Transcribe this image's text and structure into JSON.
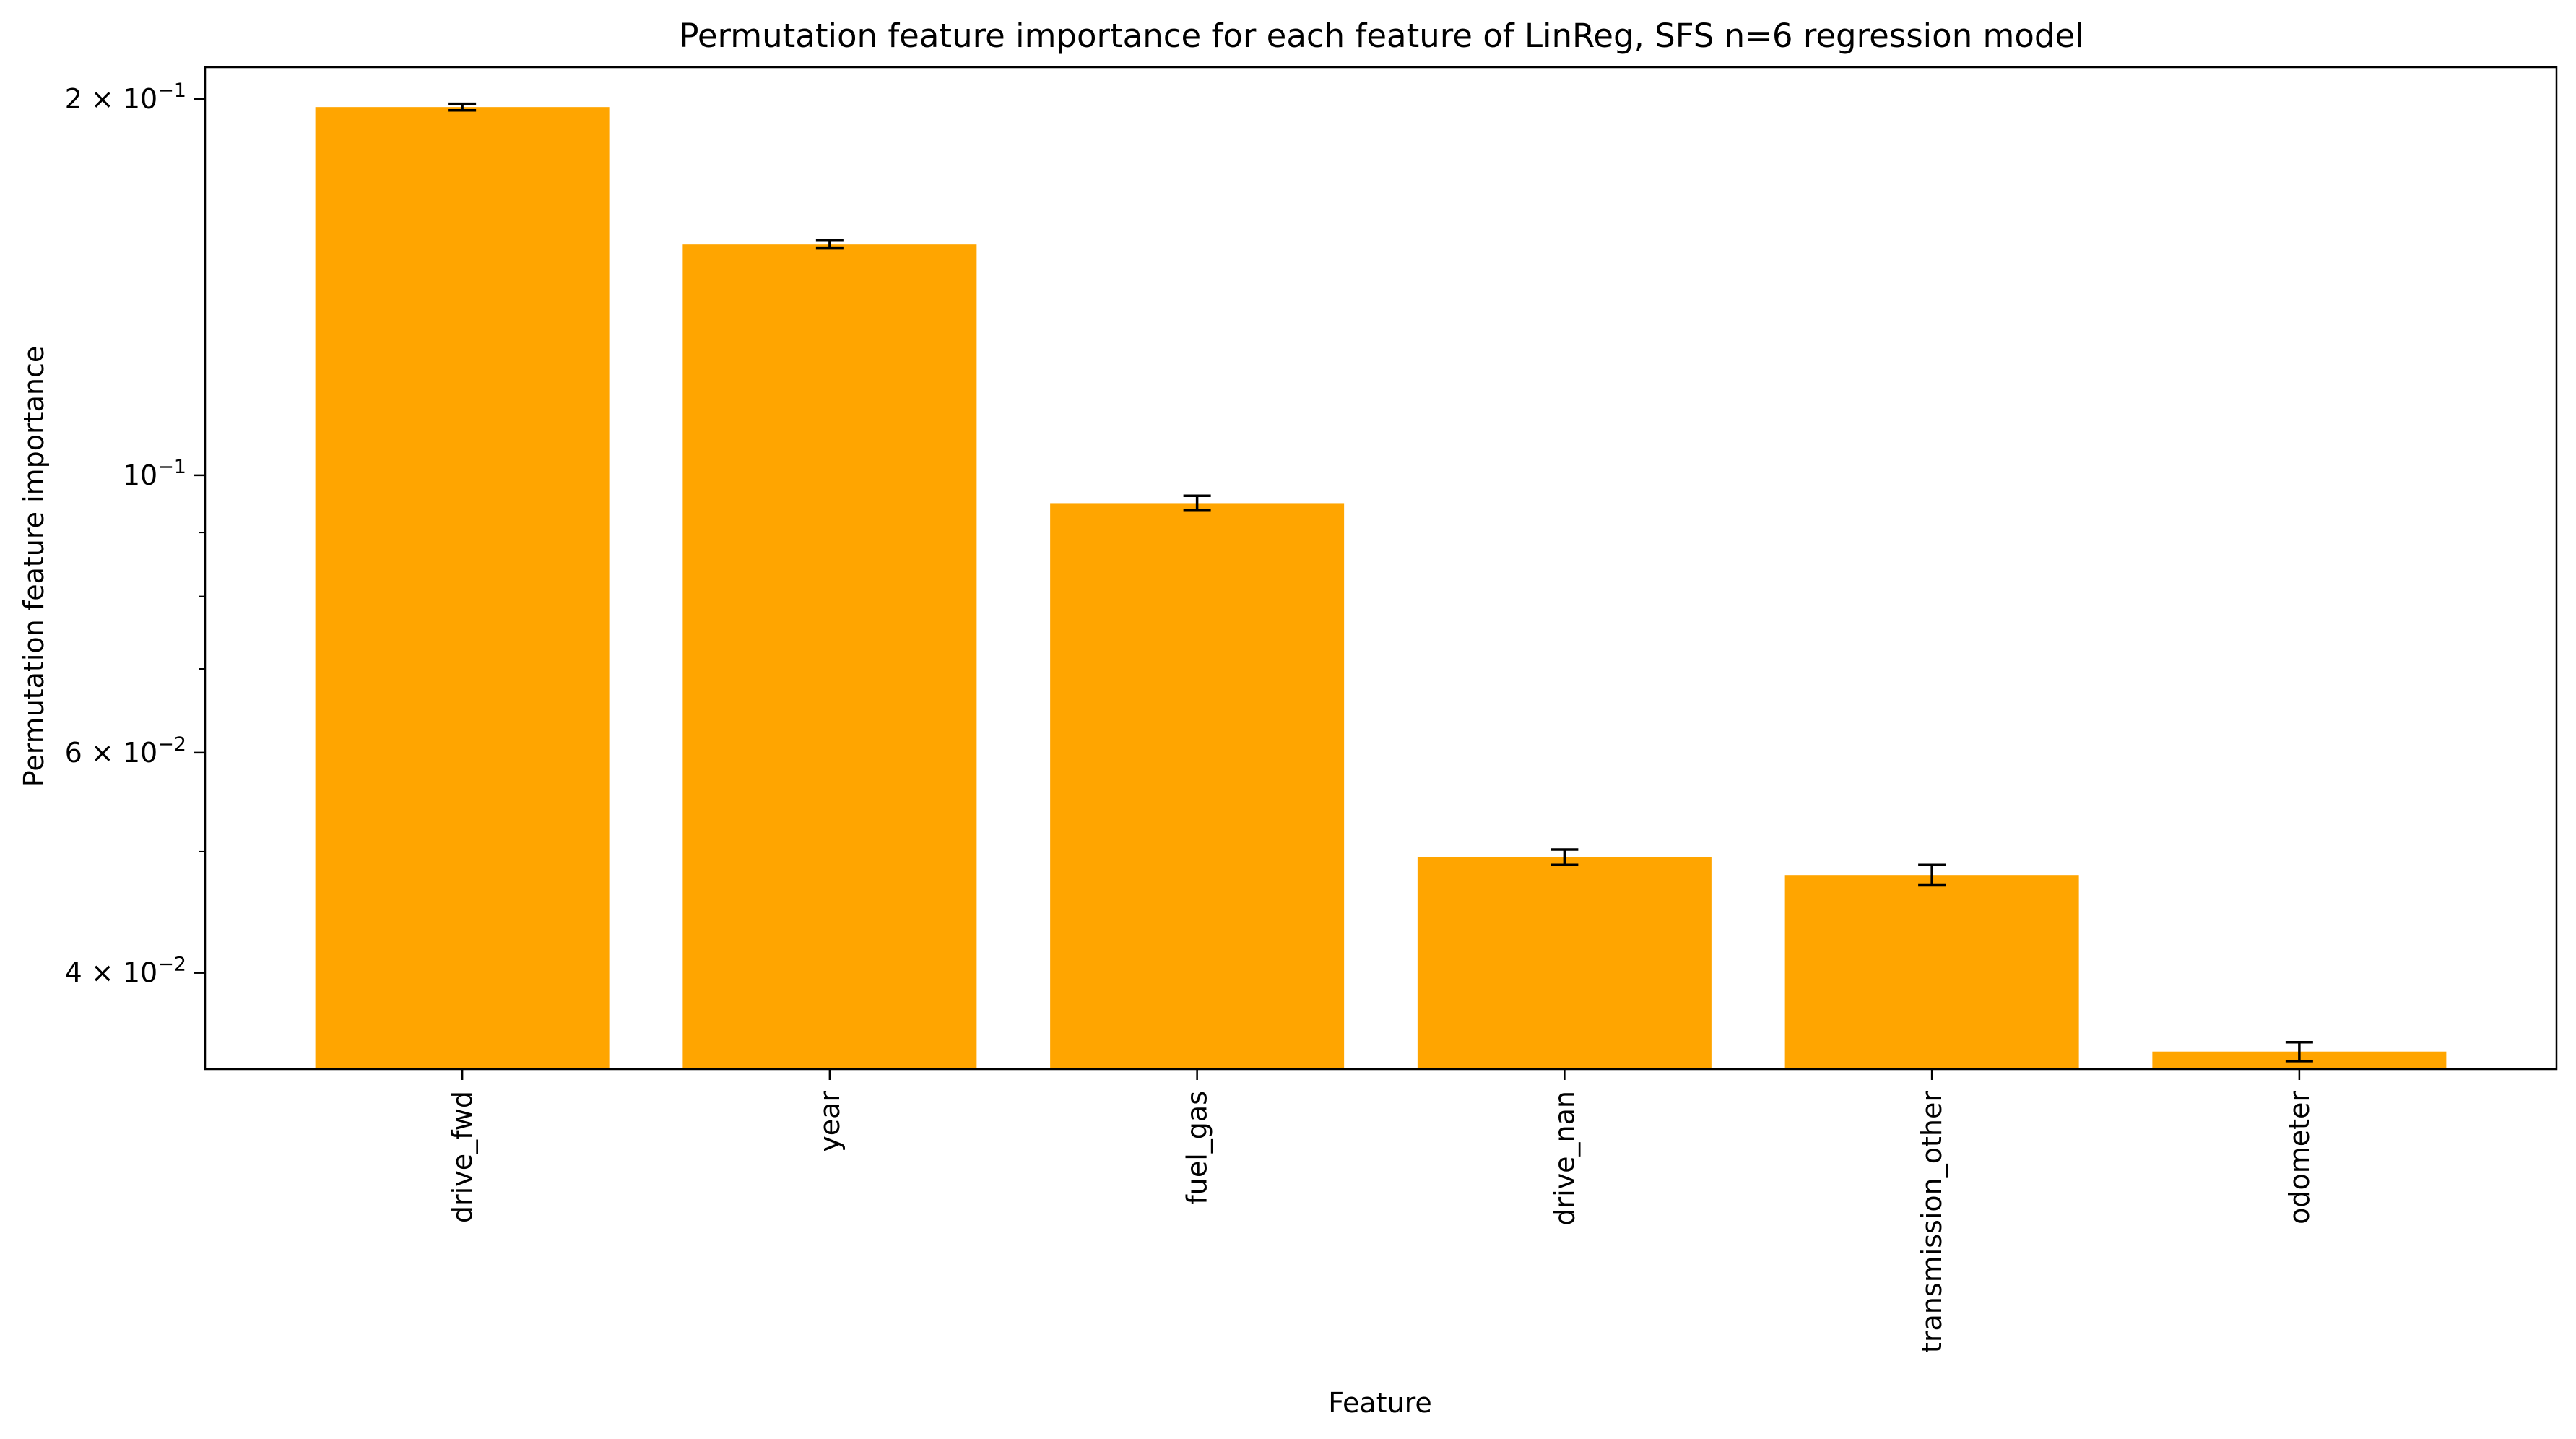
{
  "chart_data": {
    "type": "bar",
    "title": "Permutation feature importance for each feature of LinReg, SFS n=6 regression model",
    "xlabel": "Feature",
    "ylabel": "Permutation feature importance",
    "y_scale": "log",
    "ylim": [
      0.0335,
      0.212
    ],
    "categories": [
      "drive_fwd",
      "year",
      "fuel_gas",
      "drive_nan",
      "transmission_other",
      "odometer"
    ],
    "values": [
      0.197,
      0.153,
      0.095,
      0.0495,
      0.0479,
      0.0346
    ],
    "errors": [
      0.0012,
      0.0011,
      0.0013,
      0.0007,
      0.0009,
      0.0006
    ],
    "bar_color": "#FFA500",
    "grid": false,
    "legend": "none",
    "yticks": [
      {
        "value": 0.2,
        "base": "2 × 10",
        "exp": "−1"
      },
      {
        "value": 0.1,
        "base": "10",
        "exp": "−1"
      },
      {
        "value": 0.06,
        "base": "6 × 10",
        "exp": "−2"
      },
      {
        "value": 0.04,
        "base": "4 × 10",
        "exp": "−2"
      }
    ],
    "minor_yticks": [
      0.09,
      0.08,
      0.07,
      0.05
    ]
  }
}
